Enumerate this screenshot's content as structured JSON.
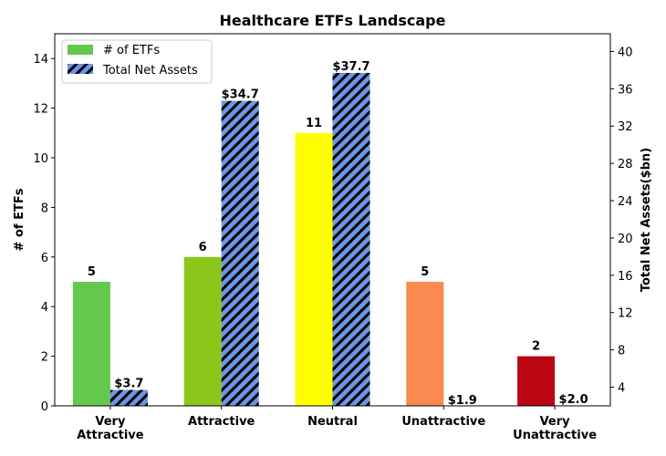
{
  "chart_data": {
    "type": "bar",
    "title": "Healthcare ETFs Landscape",
    "categories": [
      "Very\nAttractive",
      "Attractive",
      "Neutral",
      "Unattractive",
      "Very\nUnattractive"
    ],
    "series": [
      {
        "name": "# of ETFs",
        "axis": "left",
        "values": [
          5,
          6,
          11,
          5,
          2
        ],
        "colors": [
          "#64c84e",
          "#8cc61a",
          "#ffff00",
          "#f98a50",
          "#bb0614"
        ],
        "labels": [
          "5",
          "6",
          "11",
          "5",
          "2"
        ],
        "legend_color": "#64c84e"
      },
      {
        "name": "Total Net Assets",
        "axis": "right",
        "values": [
          3.7,
          34.7,
          37.7,
          1.9,
          2.0
        ],
        "color": "#6b96e8",
        "hatch": "diagonal",
        "labels": [
          "$3.7",
          "$34.7",
          "$37.7",
          "$1.9",
          "$2.0"
        ]
      }
    ],
    "ylabel": "# of ETFs",
    "ylabel_right": "Total Net Assets($bn)",
    "ylim": [
      0,
      15
    ],
    "ylim_right": [
      2.0,
      41.9
    ],
    "yticks": [
      0,
      2,
      4,
      6,
      8,
      10,
      12,
      14
    ],
    "yticks_right": [
      4,
      8,
      12,
      16,
      20,
      24,
      28,
      32,
      36,
      40
    ],
    "legend_position": "top-left",
    "grid": false
  }
}
